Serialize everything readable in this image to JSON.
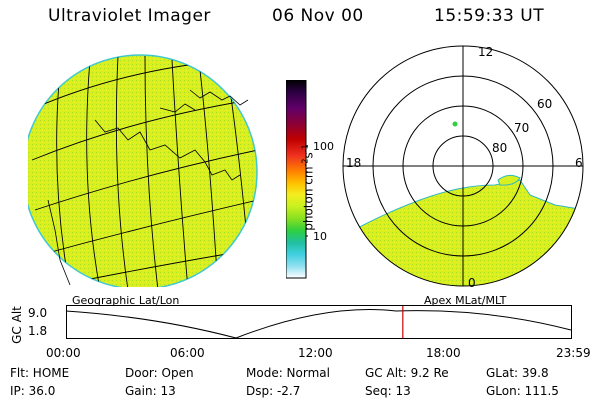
{
  "header": {
    "instrument": "Ultraviolet Imager",
    "date": "06 Nov 00",
    "time": "15:59:33 UT"
  },
  "colorbar": {
    "unit_label": "photon cm",
    "unit_exp1": "-2",
    "unit_s": "s",
    "unit_exp2": "-1",
    "ticks": [
      {
        "label": "100",
        "value": 100
      },
      {
        "label": "10",
        "value": 10
      }
    ],
    "colors": [
      "#000000",
      "#2b0040",
      "#60006a",
      "#8a0036",
      "#c00000",
      "#ee3020",
      "#ff8000",
      "#ffc000",
      "#f2ee20",
      "#c8f020",
      "#88e020",
      "#30d040",
      "#20c0a0",
      "#40d0e0",
      "#90e0f0",
      "#d8f4f8",
      "#ffffff"
    ]
  },
  "left_panel": {
    "projection_label": "Geographic Lat/Lon",
    "image_color": "#d8f020"
  },
  "right_panel": {
    "projection_label": "Apex MLat/MLT",
    "mlt_labels": {
      "top": "12",
      "left": "18",
      "right": "6",
      "bottom": "0"
    },
    "mlat_labels": [
      "60",
      "70",
      "80"
    ],
    "image_color": "#d8f020"
  },
  "timeline": {
    "ylabel": "GC Alt",
    "y_ticks": [
      "9.0",
      "1.8"
    ],
    "x_ticks": [
      "00:00",
      "06:00",
      "12:00",
      "18:00",
      "23:59"
    ],
    "current_time_fraction": 0.666,
    "marker_color": "#cc0000"
  },
  "info": {
    "row1": {
      "filter": "Flt: HOME",
      "door": "Door: Open",
      "mode": "Mode: Normal",
      "gc_alt": "GC Alt: 9.2 Re",
      "glat": "GLat:  39.8"
    },
    "row2": {
      "ip": "IP: 36.0",
      "gain": "Gain: 13",
      "dsp": "Dsp:     -2.7",
      "seq": "Seq: 13",
      "glon": "GLon: 111.5"
    }
  }
}
